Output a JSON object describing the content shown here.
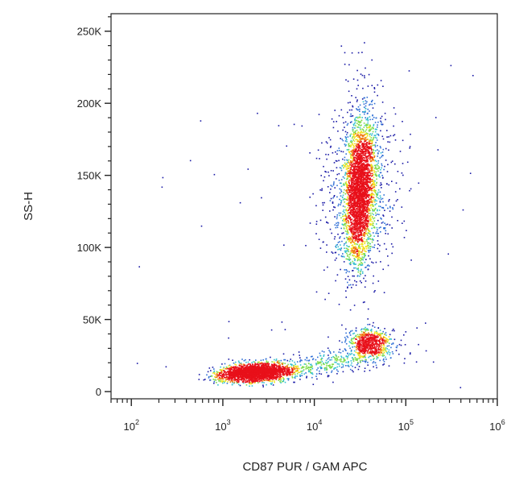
{
  "chart_data": {
    "type": "scatter",
    "title": "",
    "xlabel": "CD87 PUR / GAM APC",
    "ylabel": "SS-H",
    "x_scale": "log",
    "xlim": [
      60,
      1000000
    ],
    "ylim": [
      -5000,
      262144
    ],
    "x_ticks": [
      {
        "base": "10",
        "exp": "2",
        "value": 100
      },
      {
        "base": "10",
        "exp": "3",
        "value": 1000
      },
      {
        "base": "10",
        "exp": "4",
        "value": 10000
      },
      {
        "base": "10",
        "exp": "5",
        "value": 100000
      },
      {
        "base": "10",
        "exp": "6",
        "value": 1000000
      }
    ],
    "y_ticks": [
      {
        "label": "0",
        "value": 0
      },
      {
        "label": "50K",
        "value": 50000
      },
      {
        "label": "100K",
        "value": 100000
      },
      {
        "label": "150K",
        "value": 150000
      },
      {
        "label": "200K",
        "value": 200000
      },
      {
        "label": "250K",
        "value": 250000
      }
    ],
    "grid": false,
    "legend": "none",
    "color_scale": [
      "#1a1aa6",
      "#2f6fd6",
      "#35c0d0",
      "#7fdc4a",
      "#f2e21b",
      "#f07a12",
      "#e8101a"
    ],
    "populations": [
      {
        "x_center": 2200,
        "y_center": 14000,
        "count": 2300,
        "density": "high"
      },
      {
        "x_center": 32000,
        "y_center": 140000,
        "count": 3600,
        "density": "medium"
      },
      {
        "x_center": 40000,
        "y_center": 33000,
        "count": 700,
        "density": "medium"
      }
    ]
  }
}
